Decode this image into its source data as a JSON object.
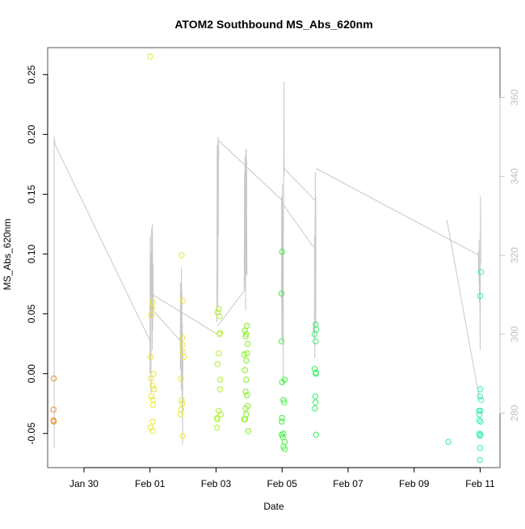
{
  "chart_data": {
    "type": "scatter",
    "title": "ATOM2 Southbound MS_Abs_620nm",
    "xlabel": "Date",
    "ylabel": "MS_Abs_620nm",
    "x_is_date": true,
    "xlim": [
      "2023-01-28T21:36:00",
      "2023-02-11T14:24:00"
    ],
    "ylim": [
      -0.0785,
      0.2725
    ],
    "x_ticks": [
      {
        "date": "2023-01-30",
        "label": "Jan 30"
      },
      {
        "date": "2023-02-01",
        "label": "Feb 01"
      },
      {
        "date": "2023-02-03",
        "label": "Feb 03"
      },
      {
        "date": "2023-02-05",
        "label": "Feb 05"
      },
      {
        "date": "2023-02-07",
        "label": "Feb 07"
      },
      {
        "date": "2023-02-09",
        "label": "Feb 09"
      },
      {
        "date": "2023-02-11",
        "label": "Feb 11"
      }
    ],
    "y_ticks": [
      -0.05,
      0.0,
      0.05,
      0.1,
      0.15,
      0.2,
      0.25
    ],
    "y_tick_labels": [
      "-0.05",
      "0.00",
      "0.05",
      "0.10",
      "0.15",
      "0.20",
      "0.25"
    ],
    "y2_lim": [
      266.2,
      372.6
    ],
    "y2_ticks": [
      280,
      300,
      320,
      340,
      360
    ],
    "y2_tick_labels": [
      "280",
      "300",
      "320",
      "340",
      "360"
    ],
    "colors": {
      "line": "#c8c8c8",
      "axis": "#000000",
      "y2_axis": "#c0c0c0",
      "frame": "#555555"
    },
    "series": [
      {
        "color": "#f0902a",
        "points": [
          [
            "2023-01-29T02:00:00",
            -0.004
          ],
          [
            "2023-01-29T01:50:00",
            -0.03
          ],
          [
            "2023-01-29T01:45:00",
            -0.039
          ],
          [
            "2023-01-29T02:00:00",
            -0.04
          ]
        ]
      },
      {
        "color": "#e8e830",
        "points": [
          [
            "2023-02-01T00:05:00",
            0.265
          ],
          [
            "2023-02-01T02:00:00",
            0.06
          ],
          [
            "2023-02-01T01:20:00",
            0.055
          ],
          [
            "2023-02-01T00:50:00",
            0.049
          ],
          [
            "2023-02-01T00:30:00",
            0.014
          ],
          [
            "2023-02-01T02:30:00",
            0.0
          ],
          [
            "2023-02-01T00:40:00",
            -0.004
          ],
          [
            "2023-02-01T02:00:00",
            -0.01
          ],
          [
            "2023-02-01T02:50:00",
            -0.013
          ],
          [
            "2023-02-01T01:00:00",
            -0.019
          ],
          [
            "2023-02-01T02:00:00",
            -0.022
          ],
          [
            "2023-02-01T02:10:00",
            -0.026
          ],
          [
            "2023-02-01T02:00:00",
            -0.04
          ],
          [
            "2023-02-01T00:20:00",
            -0.045
          ],
          [
            "2023-02-01T02:00:00",
            -0.048
          ],
          [
            "2023-02-01T23:00:00",
            0.099
          ],
          [
            "2023-02-02T00:00:00",
            0.061
          ],
          [
            "2023-02-01T23:30:00",
            0.03
          ],
          [
            "2023-02-01T23:40:00",
            0.024
          ],
          [
            "2023-02-02T00:00:00",
            0.018
          ],
          [
            "2023-02-02T00:30:00",
            0.014
          ],
          [
            "2023-02-01T22:30:00",
            -0.004
          ],
          [
            "2023-02-01T23:00:00",
            -0.022
          ],
          [
            "2023-02-01T23:30:00",
            -0.025
          ],
          [
            "2023-02-01T22:40:00",
            -0.03
          ],
          [
            "2023-02-01T22:10:00",
            -0.034
          ],
          [
            "2023-02-01T23:50:00",
            -0.052
          ]
        ]
      },
      {
        "color": "#b0f030",
        "points": [
          [
            "2023-02-03T01:00:00",
            0.051
          ],
          [
            "2023-02-03T02:00:00",
            0.054
          ],
          [
            "2023-02-03T02:30:00",
            0.048
          ],
          [
            "2023-02-03T03:00:00",
            0.034
          ],
          [
            "2023-02-03T02:30:00",
            0.033
          ],
          [
            "2023-02-03T02:00:00",
            0.017
          ],
          [
            "2023-02-03T01:00:00",
            0.008
          ],
          [
            "2023-02-03T03:00:00",
            -0.005
          ],
          [
            "2023-02-03T03:00:00",
            -0.013
          ],
          [
            "2023-02-03T02:00:00",
            -0.031
          ],
          [
            "2023-02-03T03:30:00",
            -0.034
          ],
          [
            "2023-02-03T00:40:00",
            -0.037
          ],
          [
            "2023-02-03T01:00:00",
            -0.038
          ],
          [
            "2023-02-03T00:40:00",
            -0.045
          ]
        ]
      },
      {
        "color": "#80f020",
        "points": [
          [
            "2023-02-03T22:30:00",
            0.04
          ],
          [
            "2023-02-03T21:00:00",
            0.036
          ],
          [
            "2023-02-03T22:00:00",
            0.033
          ],
          [
            "2023-02-03T21:30:00",
            0.031
          ],
          [
            "2023-02-03T23:00:00",
            0.025
          ],
          [
            "2023-02-03T22:30:00",
            0.017
          ],
          [
            "2023-02-03T20:30:00",
            0.016
          ],
          [
            "2023-02-03T22:00:00",
            0.011
          ],
          [
            "2023-02-03T21:00:00",
            0.003
          ],
          [
            "2023-02-03T22:00:00",
            -0.005
          ],
          [
            "2023-02-03T21:30:00",
            -0.015
          ],
          [
            "2023-02-03T22:30:00",
            -0.018
          ],
          [
            "2023-02-03T23:00:00",
            -0.027
          ],
          [
            "2023-02-03T21:30:00",
            -0.029
          ],
          [
            "2023-02-03T22:00:00",
            -0.034
          ],
          [
            "2023-02-03T20:30:00",
            -0.038
          ],
          [
            "2023-02-03T21:00:00",
            -0.038
          ],
          [
            "2023-02-03T23:30:00",
            -0.048
          ]
        ]
      },
      {
        "color": "#40f040",
        "points": [
          [
            "2023-02-05T00:00:00",
            0.102
          ],
          [
            "2023-02-04T23:30:00",
            0.067
          ],
          [
            "2023-02-04T23:30:00",
            0.027
          ],
          [
            "2023-02-05T02:00:00",
            -0.005
          ],
          [
            "2023-02-05T00:00:00",
            -0.007
          ],
          [
            "2023-02-05T01:00:00",
            -0.022
          ],
          [
            "2023-02-05T01:30:00",
            -0.024
          ],
          [
            "2023-02-05T00:00:00",
            -0.037
          ],
          [
            "2023-02-04T23:40:00",
            -0.04
          ],
          [
            "2023-02-05T01:00:00",
            -0.05
          ],
          [
            "2023-02-04T23:40:00",
            -0.051
          ],
          [
            "2023-02-05T00:30:00",
            -0.053
          ],
          [
            "2023-02-05T02:00:00",
            -0.057
          ],
          [
            "2023-02-05T01:00:00",
            -0.061
          ],
          [
            "2023-02-05T02:00:00",
            -0.063
          ]
        ]
      },
      {
        "color": "#30f060",
        "points": [
          [
            "2023-02-06T00:30:00",
            0.041
          ],
          [
            "2023-02-06T00:40:00",
            0.037
          ],
          [
            "2023-02-05T23:40:00",
            0.033
          ],
          [
            "2023-02-06T00:20:00",
            0.027
          ],
          [
            "2023-02-05T23:40:00",
            0.004
          ],
          [
            "2023-02-06T00:40:00",
            0.001
          ],
          [
            "2023-02-06T00:30:00",
            0.0
          ],
          [
            "2023-02-06T00:10:00",
            -0.019
          ],
          [
            "2023-02-06T00:20:00",
            -0.024
          ],
          [
            "2023-02-05T23:50:00",
            -0.029
          ],
          [
            "2023-02-06T00:40:00",
            -0.051
          ]
        ]
      },
      {
        "color": "#30f0a0",
        "points": [
          [
            "2023-02-10T00:50:00",
            -0.057
          ]
        ]
      },
      {
        "color": "#30f0b0",
        "points": [
          [
            "2023-02-11T00:40:00",
            0.085
          ],
          [
            "2023-02-11T00:00:00",
            0.065
          ],
          [
            "2023-02-11T00:00:00",
            -0.013
          ],
          [
            "2023-02-10T23:50:00",
            -0.019
          ],
          [
            "2023-02-11T00:40:00",
            -0.022
          ],
          [
            "2023-02-10T23:10:00",
            -0.031
          ],
          [
            "2023-02-11T00:10:00",
            -0.031
          ],
          [
            "2023-02-10T23:30:00",
            -0.034
          ],
          [
            "2023-02-10T23:20:00",
            -0.039
          ],
          [
            "2023-02-11T00:20:00",
            -0.04
          ],
          [
            "2023-02-10T23:30:00",
            -0.05
          ],
          [
            "2023-02-11T00:10:00",
            -0.051
          ],
          [
            "2023-02-10T23:50:00",
            -0.052
          ],
          [
            "2023-02-11T00:00:00",
            -0.062
          ],
          [
            "2023-02-10T23:50:00",
            -0.072
          ]
        ]
      }
    ],
    "line_series": {
      "axis": "secondary",
      "segments": [
        [
          [
            "2023-01-29T02:20:00",
            271
          ],
          [
            "2023-01-29T02:20:00",
            350
          ],
          [
            "2023-01-29T03:00:00",
            348
          ]
        ],
        [
          [
            "2023-01-29T03:00:00",
            348
          ],
          [
            "2023-02-01T00:30:00",
            298
          ]
        ],
        [
          [
            "2023-02-01T00:00:00",
            290
          ],
          [
            "2023-02-01T00:10:00",
            325
          ],
          [
            "2023-02-01T00:20:00",
            299
          ],
          [
            "2023-02-01T00:30:00",
            310
          ],
          [
            "2023-02-01T00:40:00",
            285
          ],
          [
            "2023-02-01T00:50:00",
            321
          ],
          [
            "2023-02-01T01:00:00",
            304
          ],
          [
            "2023-02-01T01:10:00",
            327
          ],
          [
            "2023-02-01T01:20:00",
            308
          ],
          [
            "2023-02-01T01:30:00",
            320
          ],
          [
            "2023-02-01T01:40:00",
            296
          ],
          [
            "2023-02-01T01:50:00",
            328
          ],
          [
            "2023-02-01T02:00:00",
            301
          ],
          [
            "2023-02-01T02:10:00",
            318
          ],
          [
            "2023-02-01T02:20:00",
            306
          ]
        ],
        [
          [
            "2023-02-01T02:20:00",
            306
          ],
          [
            "2023-02-01T22:50:00",
            298
          ]
        ],
        [
          [
            "2023-02-01T22:00:00",
            291
          ],
          [
            "2023-02-01T22:10:00",
            313
          ],
          [
            "2023-02-01T22:20:00",
            296
          ],
          [
            "2023-02-01T22:30:00",
            313
          ],
          [
            "2023-02-01T22:40:00",
            286
          ],
          [
            "2023-02-01T22:50:00",
            317
          ],
          [
            "2023-02-01T23:00:00",
            299
          ],
          [
            "2023-02-01T23:10:00",
            311
          ],
          [
            "2023-02-01T23:20:00",
            281
          ],
          [
            "2023-02-01T23:30:00",
            303
          ],
          [
            "2023-02-01T23:40:00",
            272
          ],
          [
            "2023-02-01T23:50:00",
            296
          ],
          [
            "2023-02-02T00:00:00",
            290
          ]
        ],
        [
          [
            "2023-02-01T02:00:00",
            310
          ],
          [
            "2023-02-03T01:00:00",
            300
          ]
        ],
        [
          [
            "2023-02-03T00:30:00",
            303
          ],
          [
            "2023-02-03T00:40:00",
            316
          ],
          [
            "2023-02-03T00:50:00",
            348
          ],
          [
            "2023-02-03T01:00:00",
            319
          ],
          [
            "2023-02-03T01:10:00",
            343
          ],
          [
            "2023-02-03T01:20:00",
            307
          ],
          [
            "2023-02-03T01:30:00",
            350
          ],
          [
            "2023-02-03T01:40:00",
            325
          ],
          [
            "2023-02-03T01:50:00",
            349
          ],
          [
            "2023-02-03T02:00:00",
            345
          ]
        ],
        [
          [
            "2023-02-03T02:00:00",
            349
          ],
          [
            "2023-02-04T23:50:00",
            334
          ]
        ],
        [
          [
            "2023-02-03T01:00:00",
            302
          ],
          [
            "2023-02-03T20:30:00",
            311
          ]
        ],
        [
          [
            "2023-02-03T20:30:00",
            311
          ],
          [
            "2023-02-03T20:40:00",
            341
          ],
          [
            "2023-02-03T20:50:00",
            312
          ],
          [
            "2023-02-03T21:00:00",
            345
          ],
          [
            "2023-02-03T21:10:00",
            318
          ],
          [
            "2023-02-03T21:20:00",
            338
          ],
          [
            "2023-02-03T21:30:00",
            306
          ],
          [
            "2023-02-03T21:40:00",
            347
          ],
          [
            "2023-02-03T21:50:00",
            322
          ],
          [
            "2023-02-03T22:00:00",
            347
          ],
          [
            "2023-02-03T22:10:00",
            315
          ],
          [
            "2023-02-03T22:20:00",
            344
          ]
        ],
        [
          [
            "2023-02-03T22:20:00",
            330
          ],
          [
            "2023-02-03T22:30:00",
            315
          ]
        ],
        [
          [
            "2023-02-04T23:30:00",
            309
          ],
          [
            "2023-02-04T23:40:00",
            335
          ],
          [
            "2023-02-04T23:50:00",
            298
          ],
          [
            "2023-02-05T00:00:00",
            334
          ],
          [
            "2023-02-05T00:10:00",
            306
          ],
          [
            "2023-02-05T00:20:00",
            338
          ],
          [
            "2023-02-05T00:30:00",
            299
          ],
          [
            "2023-02-05T00:40:00",
            330
          ],
          [
            "2023-02-05T00:50:00",
            287
          ],
          [
            "2023-02-05T01:00:00",
            324
          ],
          [
            "2023-02-05T01:10:00",
            338
          ],
          [
            "2023-02-05T01:20:00",
            364
          ],
          [
            "2023-02-05T01:30:00",
            340
          ]
        ],
        [
          [
            "2023-02-05T01:30:00",
            342
          ],
          [
            "2023-02-05T23:40:00",
            334
          ]
        ],
        [
          [
            "2023-02-05T00:30:00",
            333
          ],
          [
            "2023-02-05T23:00:00",
            322
          ]
        ],
        [
          [
            "2023-02-05T23:30:00",
            299
          ],
          [
            "2023-02-05T23:40:00",
            325
          ],
          [
            "2023-02-05T23:50:00",
            294
          ],
          [
            "2023-02-06T00:00:00",
            327
          ],
          [
            "2023-02-06T00:10:00",
            341
          ],
          [
            "2023-02-06T00:20:00",
            320
          ],
          [
            "2023-02-06T00:30:00",
            335
          ],
          [
            "2023-02-06T00:40:00",
            302
          ]
        ],
        [
          [
            "2023-02-06T00:40:00",
            342
          ],
          [
            "2023-02-10T23:10:00",
            320
          ]
        ],
        [
          [
            "2023-02-09T23:50:00",
            329
          ],
          [
            "2023-02-10T23:20:00",
            284
          ]
        ],
        [
          [
            "2023-02-10T22:40:00",
            321
          ],
          [
            "2023-02-10T22:50:00",
            315
          ],
          [
            "2023-02-10T23:00:00",
            320
          ],
          [
            "2023-02-10T23:10:00",
            313
          ],
          [
            "2023-02-10T23:20:00",
            324
          ],
          [
            "2023-02-10T23:30:00",
            308
          ],
          [
            "2023-02-10T23:40:00",
            315
          ],
          [
            "2023-02-11T00:00:00",
            296
          ],
          [
            "2023-02-11T00:10:00",
            335
          ],
          [
            "2023-02-11T00:20:00",
            330
          ],
          [
            "2023-02-11T00:30:00",
            318
          ]
        ]
      ]
    }
  }
}
